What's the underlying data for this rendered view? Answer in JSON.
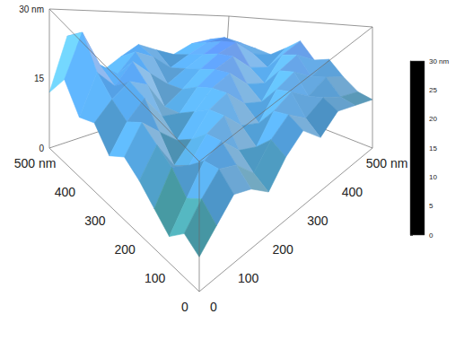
{
  "chart_data": {
    "type": "surface3d",
    "x": [
      0,
      50,
      100,
      150,
      200,
      250,
      300,
      350,
      400,
      450,
      500
    ],
    "y": [
      0,
      50,
      100,
      150,
      200,
      250,
      300,
      350,
      400,
      450,
      500
    ],
    "z": [
      [
        8,
        12,
        16,
        14,
        10,
        15,
        18,
        13,
        16,
        14,
        12
      ],
      [
        10,
        15,
        19,
        17,
        12,
        17,
        20,
        16,
        18,
        15,
        13
      ],
      [
        6,
        12,
        18,
        20,
        15,
        13,
        19,
        21,
        17,
        19,
        16
      ],
      [
        9,
        16,
        14,
        19,
        21,
        16,
        14,
        20,
        22,
        18,
        20
      ],
      [
        12,
        18,
        11,
        15,
        20,
        22,
        17,
        15,
        21,
        23,
        19
      ],
      [
        14,
        20,
        16,
        12,
        17,
        21,
        23,
        18,
        16,
        22,
        24
      ],
      [
        11,
        17,
        21,
        15,
        14,
        19,
        22,
        24,
        19,
        17,
        21
      ],
      [
        15,
        19,
        22,
        20,
        13,
        16,
        20,
        23,
        25,
        20,
        18
      ],
      [
        13,
        22,
        18,
        23,
        19,
        15,
        18,
        21,
        24,
        22,
        19
      ],
      [
        18,
        28,
        20,
        17,
        22,
        20,
        16,
        19,
        22,
        23,
        20
      ],
      [
        12,
        24,
        19,
        15,
        18,
        21,
        19,
        17,
        20,
        21,
        18
      ]
    ],
    "xlim": [
      0,
      500
    ],
    "xticks": [
      0,
      100,
      200,
      300,
      400,
      {
        "value": 500,
        "label": "500 nm"
      }
    ],
    "ylim": [
      0,
      500
    ],
    "yticks": [
      0,
      100,
      200,
      300,
      400,
      {
        "value": 500,
        "label": "500 nm"
      }
    ],
    "zlim": [
      0,
      30
    ],
    "zticks": [
      0,
      15,
      {
        "value": 30,
        "label": "30 nm"
      }
    ],
    "colorbar": {
      "range": [
        0,
        30
      ],
      "ticks": [
        0,
        5,
        10,
        15,
        20,
        25,
        {
          "value": 30,
          "label": "30 nm"
        }
      ],
      "colors": [
        "#000000",
        "#4a4a4a",
        "#3f8c8c",
        "#4a8fbf",
        "#55a3e6",
        "#5a80ea",
        "#3a1ec8"
      ]
    }
  }
}
